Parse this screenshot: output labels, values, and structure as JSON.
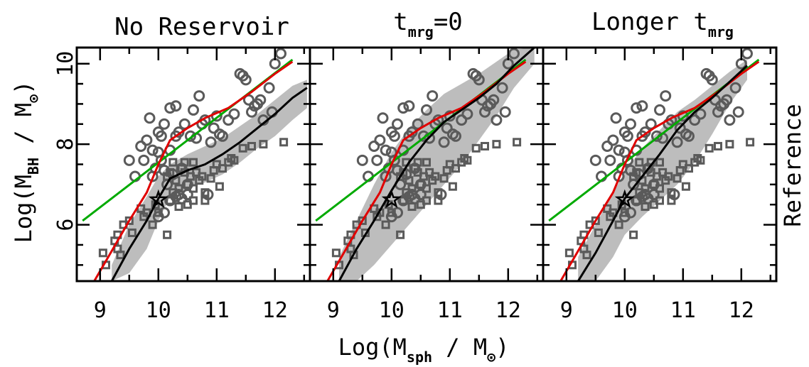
{
  "chart_data": {
    "type": "scatter",
    "panels": [
      {
        "title_main": "No Reservoir",
        "title_sub": ""
      },
      {
        "title_main": "t",
        "title_sub": "mrg",
        "title_suffix": "=0"
      },
      {
        "title_main": "Longer t",
        "title_sub": "mrg",
        "title_suffix": ""
      }
    ],
    "xlabel": {
      "pre": "Log(M",
      "sub": "sph",
      "post": " / M",
      "sun": "⊙",
      "close": ")"
    },
    "ylabel": {
      "pre": "Log(M",
      "sub": "BH",
      "post": " / M",
      "sun": "⊙",
      "close": ")"
    },
    "right_label": "Reference",
    "xlim": [
      8.6,
      12.6
    ],
    "ylim": [
      4.6,
      10.4
    ],
    "xticks": [
      9,
      10,
      11,
      12
    ],
    "yticks": [
      6,
      8,
      10
    ],
    "colors": {
      "points": "#5a5a5a",
      "band": "#bdbdbd",
      "model": "#000000",
      "red": "#e00000",
      "green": "#00aa00"
    },
    "circles": [
      [
        9.5,
        7.6
      ],
      [
        9.6,
        7.2
      ],
      [
        9.7,
        7.95
      ],
      [
        9.75,
        7.6
      ],
      [
        9.8,
        8.1
      ],
      [
        9.85,
        8.65
      ],
      [
        9.9,
        7.85
      ],
      [
        9.9,
        7.2
      ],
      [
        9.95,
        7.4
      ],
      [
        10.0,
        8.3
      ],
      [
        10.0,
        7.8
      ],
      [
        10.05,
        8.2
      ],
      [
        10.05,
        7.6
      ],
      [
        10.1,
        7.35
      ],
      [
        10.1,
        8.5
      ],
      [
        10.15,
        7.0
      ],
      [
        10.2,
        7.85
      ],
      [
        10.2,
        8.9
      ],
      [
        10.25,
        7.25
      ],
      [
        10.3,
        8.2
      ],
      [
        10.3,
        6.7
      ],
      [
        10.35,
        8.3
      ],
      [
        10.4,
        7.4
      ],
      [
        10.4,
        6.65
      ],
      [
        10.45,
        8.5
      ],
      [
        10.5,
        7.0
      ],
      [
        10.5,
        6.75
      ],
      [
        10.55,
        8.2
      ],
      [
        10.6,
        8.85
      ],
      [
        10.65,
        8.15
      ],
      [
        10.7,
        9.2
      ],
      [
        10.75,
        8.5
      ],
      [
        10.8,
        8.6
      ],
      [
        10.85,
        6.75
      ],
      [
        10.9,
        8.05
      ],
      [
        10.95,
        8.4
      ],
      [
        11.0,
        8.7
      ],
      [
        11.05,
        8.25
      ],
      [
        11.1,
        8.2
      ],
      [
        11.2,
        8.6
      ],
      [
        11.3,
        8.75
      ],
      [
        11.4,
        9.75
      ],
      [
        11.45,
        9.7
      ],
      [
        11.5,
        9.6
      ],
      [
        11.55,
        9.1
      ],
      [
        11.6,
        8.8
      ],
      [
        11.65,
        8.95
      ],
      [
        11.7,
        9.0
      ],
      [
        11.75,
        9.1
      ],
      [
        11.8,
        8.6
      ],
      [
        11.9,
        9.4
      ],
      [
        11.95,
        8.8
      ],
      [
        12.0,
        10.0
      ],
      [
        12.1,
        10.25
      ],
      [
        10.3,
        8.95
      ],
      [
        10.0,
        6.2
      ],
      [
        10.1,
        6.3
      ],
      [
        10.2,
        6.6
      ],
      [
        10.35,
        6.75
      ]
    ],
    "squares": [
      [
        9.05,
        5.3
      ],
      [
        9.1,
        5.0
      ],
      [
        9.25,
        5.6
      ],
      [
        9.3,
        5.75
      ],
      [
        9.3,
        5.4
      ],
      [
        9.35,
        5.25
      ],
      [
        9.4,
        6.0
      ],
      [
        9.5,
        6.1
      ],
      [
        9.55,
        5.8
      ],
      [
        9.7,
        6.4
      ],
      [
        9.75,
        6.2
      ],
      [
        9.8,
        6.3
      ],
      [
        9.9,
        6.0
      ],
      [
        9.95,
        6.5
      ],
      [
        10.0,
        6.3
      ],
      [
        10.15,
        5.75
      ],
      [
        10.2,
        6.6
      ],
      [
        10.25,
        6.8
      ],
      [
        10.3,
        7.1
      ],
      [
        10.35,
        6.9
      ],
      [
        10.4,
        7.4
      ],
      [
        10.45,
        7.3
      ],
      [
        10.5,
        7.0
      ],
      [
        10.55,
        7.2
      ],
      [
        10.6,
        6.9
      ],
      [
        10.65,
        7.3
      ],
      [
        10.7,
        7.1
      ],
      [
        10.75,
        7.2
      ],
      [
        10.8,
        6.8
      ],
      [
        10.9,
        7.15
      ],
      [
        10.95,
        7.35
      ],
      [
        11.0,
        7.5
      ],
      [
        11.1,
        7.4
      ],
      [
        11.2,
        7.55
      ],
      [
        11.3,
        7.6
      ],
      [
        11.45,
        7.9
      ],
      [
        11.6,
        7.95
      ],
      [
        11.8,
        8.0
      ],
      [
        12.15,
        8.05
      ],
      [
        10.6,
        6.6
      ],
      [
        10.8,
        6.6
      ],
      [
        10.5,
        6.5
      ],
      [
        10.35,
        6.45
      ],
      [
        10.25,
        7.55
      ],
      [
        10.15,
        7.2
      ],
      [
        10.45,
        7.55
      ],
      [
        10.2,
        7.3
      ],
      [
        10.6,
        7.55
      ],
      [
        11.05,
        6.95
      ],
      [
        11.25,
        7.65
      ]
    ],
    "star": [
      10.0,
      6.62
    ],
    "green_line": {
      "x": [
        8.7,
        12.3
      ],
      "y": [
        6.1,
        10.1
      ]
    },
    "red_line": {
      "x": [
        8.9,
        9.2,
        9.5,
        9.8,
        10.0,
        10.2,
        10.5,
        10.8,
        11.2,
        11.6,
        12.0,
        12.3
      ],
      "y": [
        4.6,
        5.35,
        6.1,
        6.8,
        7.5,
        8.1,
        8.4,
        8.65,
        8.9,
        9.3,
        9.75,
        10.05
      ]
    },
    "models": [
      {
        "x": [
          9.2,
          9.5,
          9.8,
          10.0,
          10.2,
          10.5,
          10.8,
          11.1,
          11.4,
          11.7,
          12.0,
          12.3,
          12.55
        ],
        "y": [
          4.6,
          5.4,
          6.1,
          6.65,
          7.15,
          7.35,
          7.5,
          7.75,
          8.05,
          8.4,
          8.75,
          9.15,
          9.4
        ],
        "band_lo": [
          4.6,
          4.8,
          5.4,
          6.1,
          6.7,
          6.9,
          7.05,
          7.25,
          7.55,
          7.9,
          8.2,
          8.6,
          8.9
        ],
        "band_hi": [
          5.0,
          6.0,
          6.7,
          7.2,
          7.5,
          7.75,
          7.95,
          8.15,
          8.45,
          8.75,
          9.1,
          9.45,
          9.6
        ]
      },
      {
        "x": [
          9.1,
          9.4,
          9.7,
          10.0,
          10.3,
          10.6,
          10.9,
          11.2,
          11.5,
          11.8,
          12.1,
          12.45
        ],
        "y": [
          4.6,
          5.4,
          6.1,
          6.85,
          7.55,
          8.1,
          8.55,
          8.85,
          9.15,
          9.5,
          9.95,
          10.4
        ],
        "band_lo": [
          4.6,
          4.6,
          5.0,
          5.5,
          6.0,
          6.5,
          7.0,
          7.5,
          8.1,
          8.7,
          9.4,
          10.0
        ],
        "band_hi": [
          5.2,
          6.1,
          7.0,
          7.8,
          8.4,
          8.85,
          9.25,
          9.5,
          9.75,
          10.05,
          10.35,
          10.4
        ]
      },
      {
        "x": [
          9.2,
          9.5,
          9.8,
          10.0,
          10.3,
          10.6,
          10.9,
          11.2,
          11.5,
          11.8,
          12.1
        ],
        "y": [
          4.6,
          5.3,
          6.1,
          6.65,
          7.2,
          7.75,
          8.35,
          8.8,
          9.15,
          9.55,
          9.95
        ],
        "band_lo": [
          4.6,
          4.6,
          5.2,
          5.75,
          6.2,
          6.6,
          7.0,
          7.55,
          8.25,
          9.0,
          9.6
        ],
        "band_hi": [
          5.2,
          6.0,
          6.8,
          7.3,
          7.9,
          8.35,
          8.8,
          9.1,
          9.45,
          9.8,
          10.1
        ]
      }
    ]
  }
}
